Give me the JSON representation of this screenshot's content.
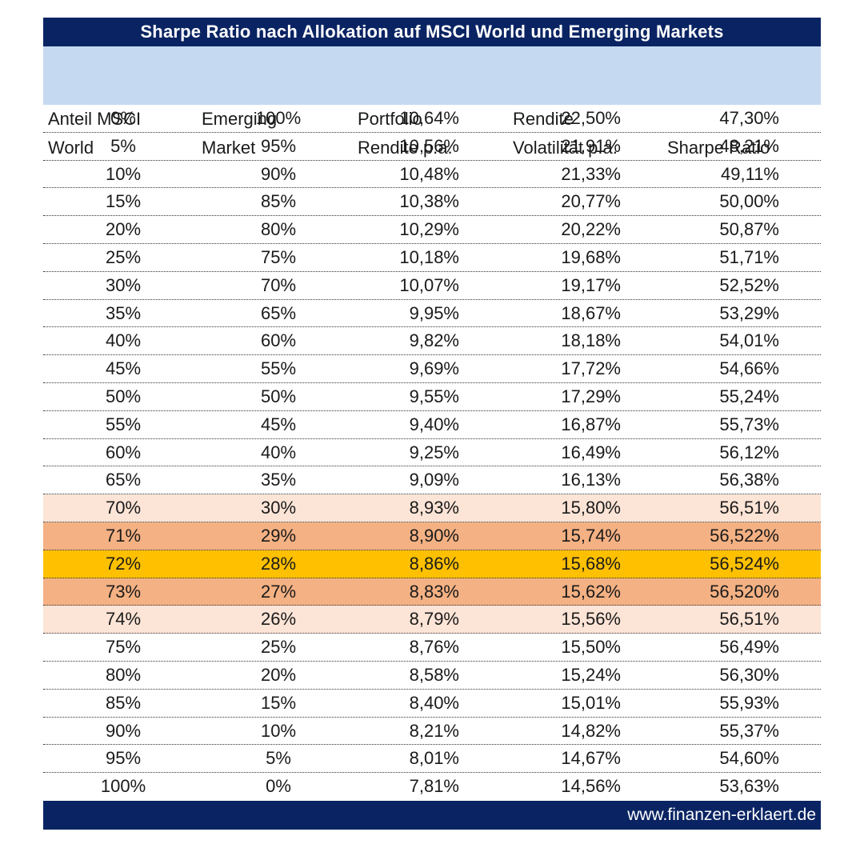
{
  "title": "Sharpe Ratio nach Allokation auf MSCI World und Emerging Markets",
  "colors": {
    "title_bg": "#0a2463",
    "header_bg": "#c5d9f1",
    "highlight_light": "#fce4d6",
    "highlight_mid": "#f4b183",
    "highlight_strong": "#ffc000"
  },
  "chart_data": {
    "type": "table",
    "title": "Sharpe Ratio nach Allokation auf MSCI World und Emerging Markets",
    "columns": [
      {
        "line1": "Anteil MSCI",
        "line2": "World"
      },
      {
        "line1": "Emerging",
        "line2": "Market"
      },
      {
        "line1": "Portfolio",
        "line2": "Rendite p.a."
      },
      {
        "line1": "Rendite",
        "line2": "Volatilität p.a."
      },
      {
        "line1": "",
        "line2": "Sharpe Ratio"
      }
    ],
    "rows": [
      {
        "cells": [
          "0%",
          "100%",
          "10,64%",
          "22,50%",
          "47,30%"
        ],
        "highlight": ""
      },
      {
        "cells": [
          "5%",
          "95%",
          "10,56%",
          "21,91%",
          "48,21%"
        ],
        "highlight": ""
      },
      {
        "cells": [
          "10%",
          "90%",
          "10,48%",
          "21,33%",
          "49,11%"
        ],
        "highlight": ""
      },
      {
        "cells": [
          "15%",
          "85%",
          "10,38%",
          "20,77%",
          "50,00%"
        ],
        "highlight": ""
      },
      {
        "cells": [
          "20%",
          "80%",
          "10,29%",
          "20,22%",
          "50,87%"
        ],
        "highlight": ""
      },
      {
        "cells": [
          "25%",
          "75%",
          "10,18%",
          "19,68%",
          "51,71%"
        ],
        "highlight": ""
      },
      {
        "cells": [
          "30%",
          "70%",
          "10,07%",
          "19,17%",
          "52,52%"
        ],
        "highlight": ""
      },
      {
        "cells": [
          "35%",
          "65%",
          "9,95%",
          "18,67%",
          "53,29%"
        ],
        "highlight": ""
      },
      {
        "cells": [
          "40%",
          "60%",
          "9,82%",
          "18,18%",
          "54,01%"
        ],
        "highlight": ""
      },
      {
        "cells": [
          "45%",
          "55%",
          "9,69%",
          "17,72%",
          "54,66%"
        ],
        "highlight": ""
      },
      {
        "cells": [
          "50%",
          "50%",
          "9,55%",
          "17,29%",
          "55,24%"
        ],
        "highlight": ""
      },
      {
        "cells": [
          "55%",
          "45%",
          "9,40%",
          "16,87%",
          "55,73%"
        ],
        "highlight": ""
      },
      {
        "cells": [
          "60%",
          "40%",
          "9,25%",
          "16,49%",
          "56,12%"
        ],
        "highlight": ""
      },
      {
        "cells": [
          "65%",
          "35%",
          "9,09%",
          "16,13%",
          "56,38%"
        ],
        "highlight": ""
      },
      {
        "cells": [
          "70%",
          "30%",
          "8,93%",
          "15,80%",
          "56,51%"
        ],
        "highlight": "light"
      },
      {
        "cells": [
          "71%",
          "29%",
          "8,90%",
          "15,74%",
          "56,522%"
        ],
        "highlight": "mid"
      },
      {
        "cells": [
          "72%",
          "28%",
          "8,86%",
          "15,68%",
          "56,524%"
        ],
        "highlight": "strong"
      },
      {
        "cells": [
          "73%",
          "27%",
          "8,83%",
          "15,62%",
          "56,520%"
        ],
        "highlight": "mid"
      },
      {
        "cells": [
          "74%",
          "26%",
          "8,79%",
          "15,56%",
          "56,51%"
        ],
        "highlight": "light"
      },
      {
        "cells": [
          "75%",
          "25%",
          "8,76%",
          "15,50%",
          "56,49%"
        ],
        "highlight": ""
      },
      {
        "cells": [
          "80%",
          "20%",
          "8,58%",
          "15,24%",
          "56,30%"
        ],
        "highlight": ""
      },
      {
        "cells": [
          "85%",
          "15%",
          "8,40%",
          "15,01%",
          "55,93%"
        ],
        "highlight": ""
      },
      {
        "cells": [
          "90%",
          "10%",
          "8,21%",
          "14,82%",
          "55,37%"
        ],
        "highlight": ""
      },
      {
        "cells": [
          "95%",
          "5%",
          "8,01%",
          "14,67%",
          "54,60%"
        ],
        "highlight": ""
      },
      {
        "cells": [
          "100%",
          "0%",
          "7,81%",
          "14,56%",
          "53,63%"
        ],
        "highlight": ""
      }
    ]
  },
  "footer": {
    "website": "www.finanzen-erklaert.de"
  }
}
